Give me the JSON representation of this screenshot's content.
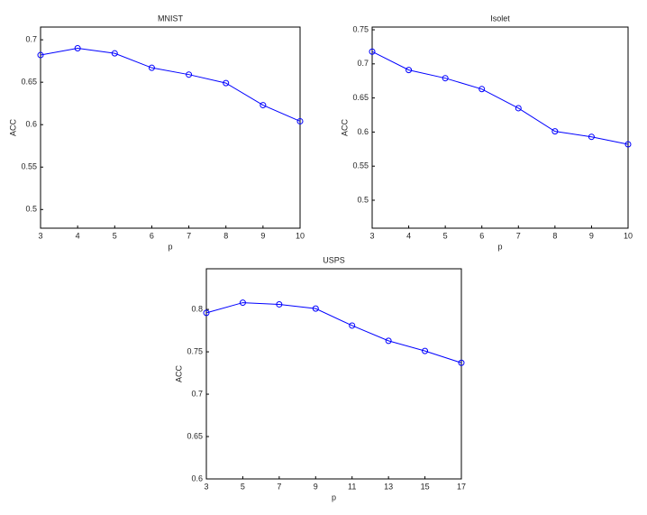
{
  "chart_data": [
    {
      "type": "line",
      "title": "MNIST",
      "x_label": "p",
      "y_label": "ACC",
      "x": [
        3,
        4,
        5,
        6,
        7,
        8,
        9,
        10
      ],
      "series": [
        {
          "color": "#0000ff",
          "values": [
            0.682,
            0.69,
            0.684,
            0.667,
            0.659,
            0.649,
            0.623,
            0.604
          ]
        }
      ],
      "xlim": [
        3,
        10
      ],
      "xticks": [
        3,
        4,
        5,
        6,
        7,
        8,
        9,
        10
      ],
      "ylim": [
        0.478,
        0.715
      ],
      "yticks": [
        0.5,
        0.55,
        0.6,
        0.65,
        0.7
      ],
      "grid": false
    },
    {
      "type": "line",
      "title": "Isolet",
      "x_label": "p",
      "y_label": "ACC",
      "x": [
        3,
        4,
        5,
        6,
        7,
        8,
        9,
        10
      ],
      "series": [
        {
          "color": "#0000ff",
          "values": [
            0.718,
            0.691,
            0.679,
            0.663,
            0.635,
            0.601,
            0.593,
            0.582
          ]
        }
      ],
      "xlim": [
        3,
        10
      ],
      "xticks": [
        3,
        4,
        5,
        6,
        7,
        8,
        9,
        10
      ],
      "ylim": [
        0.459,
        0.754
      ],
      "yticks": [
        0.5,
        0.55,
        0.6,
        0.65,
        0.7,
        0.75
      ],
      "grid": false
    },
    {
      "type": "line",
      "title": "USPS",
      "x_label": "p",
      "y_label": "ACC",
      "x": [
        3,
        5,
        7,
        9,
        11,
        13,
        15,
        17
      ],
      "series": [
        {
          "color": "#0000ff",
          "values": [
            0.796,
            0.808,
            0.806,
            0.801,
            0.781,
            0.763,
            0.751,
            0.737
          ]
        }
      ],
      "xlim": [
        3,
        17
      ],
      "xticks": [
        3,
        5,
        7,
        9,
        11,
        13,
        15,
        17
      ],
      "ylim": [
        0.6,
        0.848
      ],
      "yticks": [
        0.6,
        0.65,
        0.7,
        0.75,
        0.8
      ],
      "grid": false
    }
  ]
}
